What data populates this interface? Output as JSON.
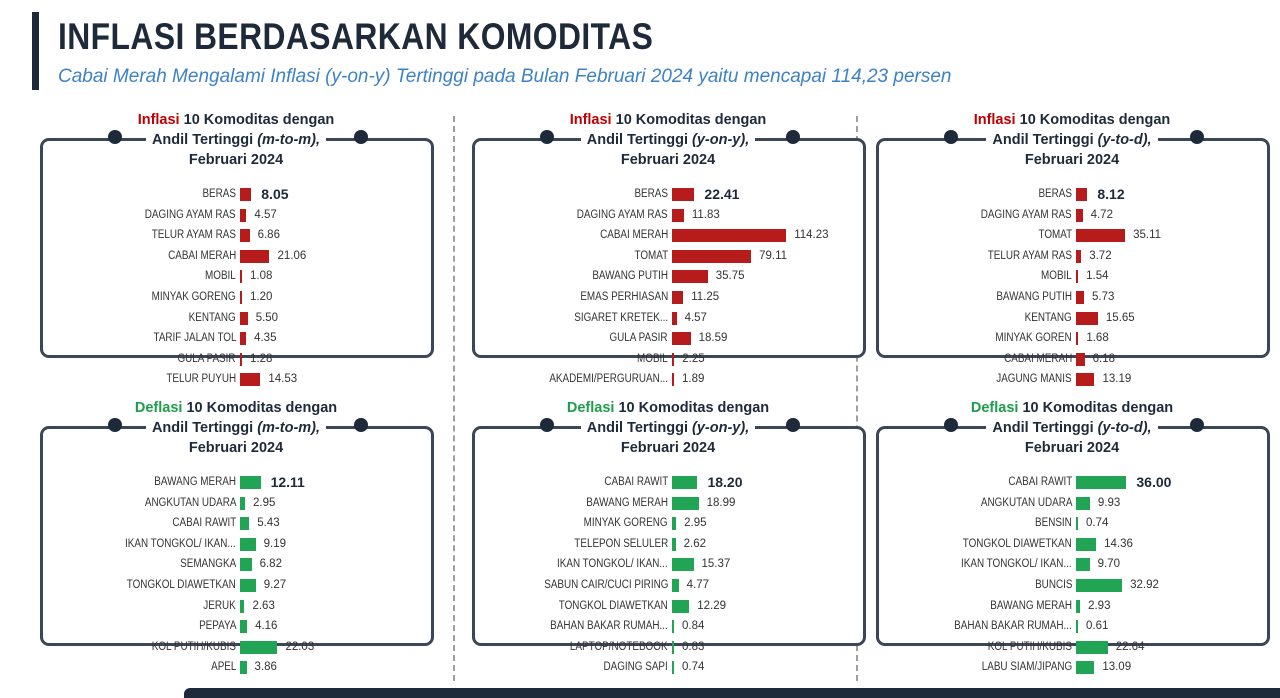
{
  "header": {
    "title": "INFLASI BERDASARKAN KOMODITAS",
    "subtitle": "Cabai Merah Mengalami Inflasi (y-on-y) Tertinggi pada Bulan Februari 2024 yaitu mencapai 114,23 persen"
  },
  "colors": {
    "inflation": "#b71c1c",
    "deflation": "#22a455",
    "frame": "#3b4656"
  },
  "chart_data": [
    {
      "type": "bar",
      "orientation": "horizontal",
      "kind": "inflasi",
      "title_prefix": "Inflasi",
      "title_rest": "10 Komoditas dengan",
      "title_line2": "Andil Tertinggi",
      "period": "(m-to-m),",
      "title_line3": "Februari 2024",
      "categories": [
        "BERAS",
        "DAGING AYAM RAS",
        "TELUR AYAM RAS",
        "CABAI MERAH",
        "MOBIL",
        "MINYAK GORENG",
        "KENTANG",
        "TARIF JALAN TOL",
        "GULA PASIR",
        "TELUR PUYUH"
      ],
      "values": [
        8.05,
        4.57,
        6.86,
        21.06,
        1.08,
        1.2,
        5.5,
        4.35,
        1.28,
        14.53
      ],
      "labels": [
        "8.05",
        "4.57",
        "6.86",
        "21.06",
        "1.08",
        "1.20",
        "5.50",
        "4.35",
        "1.28",
        "14.53"
      ]
    },
    {
      "type": "bar",
      "orientation": "horizontal",
      "kind": "inflasi",
      "title_prefix": "Inflasi",
      "title_rest": "10 Komoditas dengan",
      "title_line2": "Andil Tertinggi",
      "period": "(y-on-y),",
      "title_line3": "Februari 2024",
      "categories": [
        "BERAS",
        "DAGING AYAM RAS",
        "CABAI MERAH",
        "TOMAT",
        "BAWANG PUTIH",
        "EMAS PERHIASAN",
        "SIGARET KRETEK...",
        "GULA PASIR",
        "MOBIL",
        "AKADEMI/PERGURUAN..."
      ],
      "values": [
        22.41,
        11.83,
        114.23,
        79.11,
        35.75,
        11.25,
        4.57,
        18.59,
        2.25,
        1.89
      ],
      "labels": [
        "22.41",
        "11.83",
        "114.23",
        "79.11",
        "35.75",
        "11.25",
        "4.57",
        "18.59",
        "2.25",
        "1.89"
      ]
    },
    {
      "type": "bar",
      "orientation": "horizontal",
      "kind": "inflasi",
      "title_prefix": "Inflasi",
      "title_rest": "10 Komoditas dengan",
      "title_line2": "Andil Tertinggi",
      "period": "(y-to-d),",
      "title_line3": "Februari 2024",
      "categories": [
        "BERAS",
        "DAGING AYAM RAS",
        "TOMAT",
        "TELUR AYAM RAS",
        "MOBIL",
        "BAWANG PUTIH",
        "KENTANG",
        "MINYAK GOREN",
        "CABAI MERAH",
        "JAGUNG MANIS"
      ],
      "values": [
        8.12,
        4.72,
        35.11,
        3.72,
        1.54,
        5.73,
        15.65,
        1.68,
        6.18,
        13.19
      ],
      "labels": [
        "8.12",
        "4.72",
        "35.11",
        "3.72",
        "1.54",
        "5.73",
        "15.65",
        "1.68",
        "6.18",
        "13.19"
      ]
    },
    {
      "type": "bar",
      "orientation": "horizontal",
      "kind": "deflasi",
      "title_prefix": "Deflasi",
      "title_rest": "10 Komoditas dengan",
      "title_line2": "Andil Tertinggi",
      "period": "(m-to-m),",
      "title_line3": "Februari 2024",
      "categories": [
        "BAWANG MERAH",
        "ANGKUTAN UDARA",
        "CABAI RAWIT",
        "IKAN TONGKOL/ IKAN...",
        "SEMANGKA",
        "TONGKOL DIAWETKAN",
        "JERUK",
        "PEPAYA",
        "KOL PUTIH/KUBIS",
        "APEL"
      ],
      "values": [
        12.11,
        2.95,
        5.43,
        9.19,
        6.82,
        9.27,
        2.63,
        4.16,
        22.03,
        3.86
      ],
      "labels": [
        "12.11",
        "2.95",
        "5.43",
        "9.19",
        "6.82",
        "9.27",
        "2.63",
        "4.16",
        "22.03",
        "3.86"
      ]
    },
    {
      "type": "bar",
      "orientation": "horizontal",
      "kind": "deflasi",
      "title_prefix": "Deflasi",
      "title_rest": "10 Komoditas dengan",
      "title_line2": "Andil Tertinggi",
      "period": "(y-on-y),",
      "title_line3": "Februari 2024",
      "categories": [
        "CABAI RAWIT",
        "BAWANG MERAH",
        "MINYAK GORENG",
        "TELEPON SELULER",
        "IKAN TONGKOL/ IKAN...",
        "SABUN CAIR/CUCI PIRING",
        "TONGKOL DIAWETKAN",
        "BAHAN BAKAR RUMAH...",
        "LAPTOP/NOTEBOOK",
        "DAGING SAPI"
      ],
      "values": [
        18.2,
        18.99,
        2.95,
        2.62,
        15.37,
        4.77,
        12.29,
        0.84,
        0.83,
        0.74
      ],
      "labels": [
        "18.20",
        "18.99",
        "2.95",
        "2.62",
        "15.37",
        "4.77",
        "12.29",
        "0.84",
        "0.83",
        "0.74"
      ]
    },
    {
      "type": "bar",
      "orientation": "horizontal",
      "kind": "deflasi",
      "title_prefix": "Deflasi",
      "title_rest": "10 Komoditas dengan",
      "title_line2": "Andil Tertinggi",
      "period": "(y-to-d),",
      "title_line3": "Februari 2024",
      "categories": [
        "CABAI RAWIT",
        "ANGKUTAN UDARA",
        "BENSIN",
        "TONGKOL DIAWETKAN",
        "IKAN TONGKOL/ IKAN...",
        "BUNCIS",
        "BAWANG MERAH",
        "BAHAN BAKAR RUMAH...",
        "KOL PUTIH/KUBIS",
        "LABU SIAM/JIPANG"
      ],
      "values": [
        36.0,
        9.93,
        0.74,
        14.36,
        9.7,
        32.92,
        2.93,
        0.61,
        22.64,
        13.09
      ],
      "labels": [
        "36.00",
        "9.93",
        "0.74",
        "14.36",
        "9.70",
        "32.92",
        "2.93",
        "0.61",
        "22.64",
        "13.09"
      ]
    }
  ]
}
